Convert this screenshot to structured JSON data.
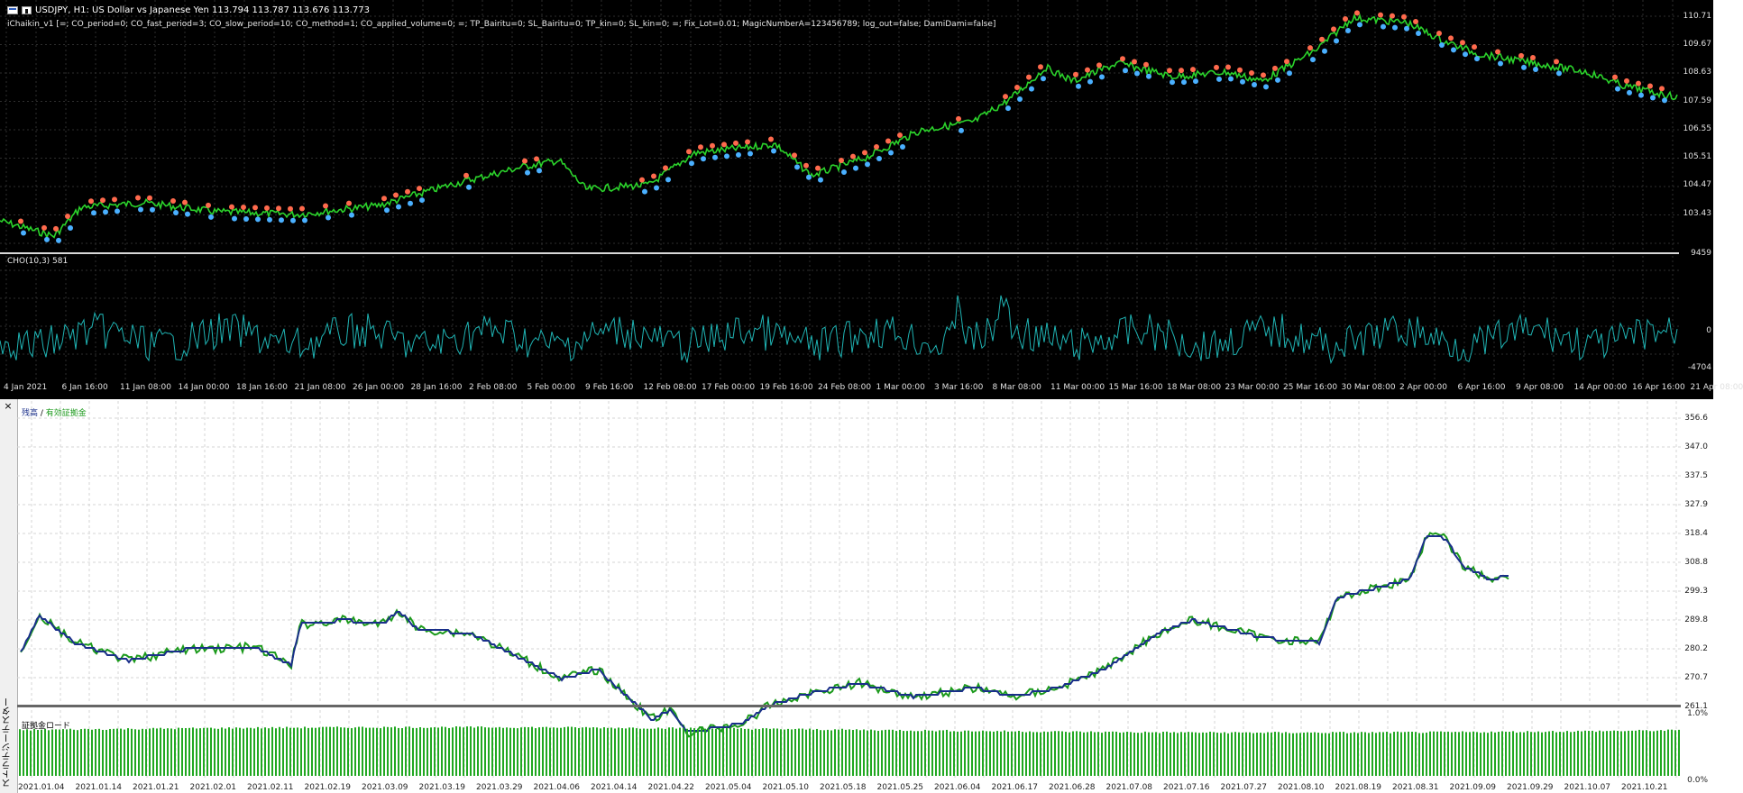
{
  "chart": {
    "symbol_title": "USDJPY, H1:  US Dollar vs Japanese Yen  113.794 113.787 113.676 113.773",
    "params": "iChaikin_v1 [=; CO_period=0; CO_fast_period=3; CO_slow_period=10; CO_method=1; CO_applied_volume=0; =; TP_Bairitu=0; SL_Bairitu=0; TP_kin=0; SL_kin=0; =; Fix_Lot=0.01; MagicNumberA=123456789; log_out=false; DamiDami=false]",
    "indicator_label": "CHO(10,3) 581",
    "price_ticks": [
      "110.71",
      "109.67",
      "108.63",
      "107.59",
      "106.55",
      "105.51",
      "104.47",
      "103.43"
    ],
    "indicator_ticks": [
      "9459",
      "0",
      "-4704"
    ],
    "time_labels": [
      "4 Jan 2021",
      "6 Jan 16:00",
      "11 Jan 08:00",
      "14 Jan 00:00",
      "18 Jan 16:00",
      "21 Jan 08:00",
      "26 Jan 00:00",
      "28 Jan 16:00",
      "2 Feb 08:00",
      "5 Feb 00:00",
      "9 Feb 16:00",
      "12 Feb 08:00",
      "17 Feb 00:00",
      "19 Feb 16:00",
      "24 Feb 08:00",
      "1 Mar 00:00",
      "3 Mar 16:00",
      "8 Mar 08:00",
      "11 Mar 00:00",
      "15 Mar 16:00",
      "18 Mar 08:00",
      "23 Mar 00:00",
      "25 Mar 16:00",
      "30 Mar 08:00",
      "2 Apr 00:00",
      "6 Apr 16:00",
      "9 Apr 08:00",
      "14 Apr 00:00",
      "16 Apr 16:00",
      "21 Apr 08:00"
    ],
    "colors": {
      "price": "#2bd32b",
      "indicator": "#1fb4b4",
      "grid": "#3a3a3a"
    }
  },
  "tester": {
    "close_glyph": "×",
    "vertical_label": "ストラテジーテスター",
    "legend_balance": "残高",
    "legend_sep": " / ",
    "legend_equity": "有効証拠金",
    "load_label": "証拠金ロード",
    "right_ticks": [
      "356.6",
      "347.0",
      "337.5",
      "327.9",
      "318.4",
      "308.8",
      "299.3",
      "289.8",
      "280.2",
      "270.7",
      "261.1"
    ],
    "load_ticks": [
      "1.0%",
      "0.0%"
    ],
    "dates": [
      "2021.01.04",
      "2021.01.14",
      "2021.01.21",
      "2021.02.01",
      "2021.02.11",
      "2021.02.19",
      "2021.03.09",
      "2021.03.19",
      "2021.03.29",
      "2021.04.06",
      "2021.04.14",
      "2021.04.22",
      "2021.05.04",
      "2021.05.10",
      "2021.05.18",
      "2021.05.25",
      "2021.06.04",
      "2021.06.17",
      "2021.06.28",
      "2021.07.08",
      "2021.07.16",
      "2021.07.27",
      "2021.08.10",
      "2021.08.19",
      "2021.08.31",
      "2021.09.09",
      "2021.09.29",
      "2021.10.07",
      "2021.10.21"
    ],
    "colors": {
      "balance": "#1a2f8a",
      "equity": "#1c9a1c",
      "load": "#21a821",
      "grid": "#d0d0d0"
    }
  }
}
